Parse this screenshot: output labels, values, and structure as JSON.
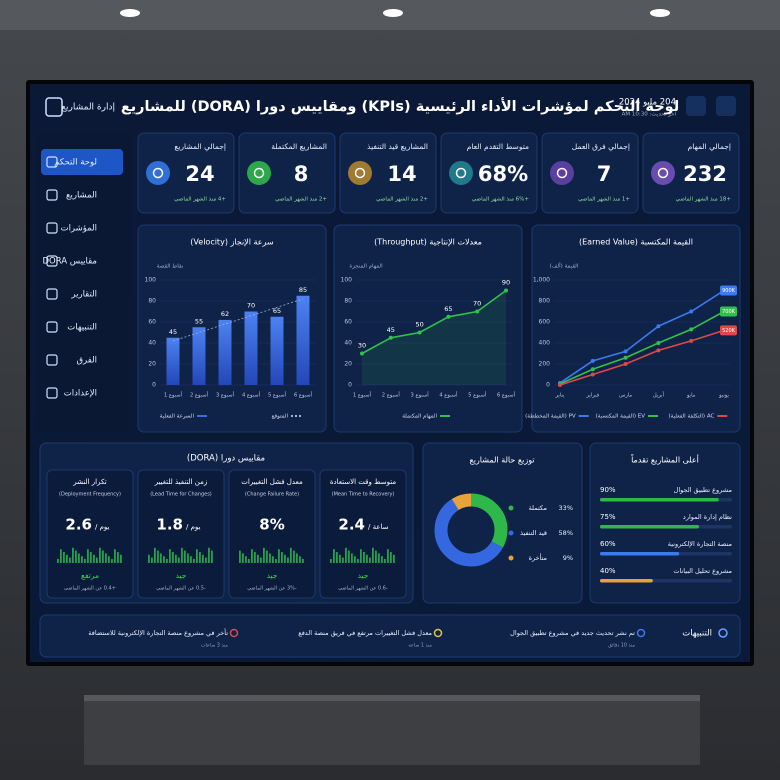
{
  "header": {
    "brand": "إدارة المشاريع",
    "title": "لوحة التحكم لمؤشرات الأداء الرئيسية (KPIs) ومقاييس دورا (DORA) للمشاريع",
    "date": "204 مايو 2024",
    "updated": "آخر تحديث: 10:30 AM"
  },
  "sidebar": [
    "لوحة التحكم",
    "المشاريع",
    "المؤشرات",
    "مقاييس DORA",
    "التقارير",
    "التنبيهات",
    "الفرق",
    "الإعدادات"
  ],
  "kpis": [
    {
      "title": "إجمالي المشاريع",
      "value": "24",
      "note": "+4 منذ الشهر الماضي",
      "color": "#2f6fd6"
    },
    {
      "title": "المشاريع المكتملة",
      "value": "8",
      "note": "+2 منذ الشهر الماضي",
      "color": "#2aa84a"
    },
    {
      "title": "المشاريع قيد التنفيذ",
      "value": "14",
      "note": "+2 منذ الشهر الماضي",
      "color": "#a07a30"
    },
    {
      "title": "متوسط التقدم العام",
      "value": "68%",
      "note": "+6% منذ الشهر الماضي",
      "color": "#1f7a8c"
    },
    {
      "title": "إجمالي فرق العمل",
      "value": "7",
      "note": "+1 منذ الشهر الماضي",
      "color": "#5b3fa0"
    },
    {
      "title": "إجمالي المهام",
      "value": "232",
      "note": "+18 منذ الشهر الماضي",
      "color": "#6a4bb0"
    }
  ],
  "velocity": {
    "type": "bar",
    "title": "سرعة الإنجاز (Velocity)",
    "y_label": "نقاط القصة",
    "categories": [
      "أسبوع 1",
      "أسبوع 2",
      "أسبوع 3",
      "أسبوع 4",
      "أسبوع 5",
      "أسبوع 6"
    ],
    "series": [
      {
        "name": "السرعة الفعلية",
        "color": "#3b6fe0",
        "values": [
          45,
          55,
          62,
          70,
          65,
          85
        ]
      },
      {
        "name": "المتوقع",
        "color": "#9fb3d9",
        "values": [
          42,
          50,
          58,
          66,
          74,
          82
        ]
      }
    ],
    "ylim": [
      0,
      100
    ],
    "yticks": [
      0,
      20,
      40,
      60,
      80,
      100
    ]
  },
  "throughput": {
    "type": "line",
    "title": "معدلات الإنتاجية (Throughput)",
    "y_label": "المهام المنجزة",
    "categories": [
      "أسبوع 1",
      "أسبوع 2",
      "أسبوع 3",
      "أسبوع 4",
      "أسبوع 5",
      "أسبوع 6"
    ],
    "series": [
      {
        "name": "المهام المكتملة",
        "color": "#2fc24a",
        "values": [
          30,
          45,
          50,
          65,
          70,
          90
        ]
      }
    ],
    "ylim": [
      0,
      100
    ],
    "yticks": [
      0,
      20,
      40,
      60,
      80,
      100
    ]
  },
  "earned_value": {
    "type": "line",
    "title": "القيمة المكتسبة (Earned Value)",
    "y_label": "القيمة (ألف)",
    "categories": [
      "يناير",
      "فبراير",
      "مارس",
      "أبريل",
      "مايو",
      "يونيو"
    ],
    "series": [
      {
        "name": "PV (القيمة المخططة)",
        "color": "#3b7bf0",
        "values": [
          20,
          230,
          320,
          560,
          700,
          900
        ],
        "end_label": "900K"
      },
      {
        "name": "EV (القيمة المكتسبة)",
        "color": "#2fc24a",
        "values": [
          10,
          150,
          260,
          400,
          530,
          700
        ],
        "end_label": "700K"
      },
      {
        "name": "AC (التكلفة الفعلية)",
        "color": "#e04848",
        "values": [
          0,
          100,
          200,
          330,
          420,
          520
        ],
        "end_label": "520K"
      }
    ],
    "ylim": [
      0,
      1000
    ],
    "yticks": [
      0,
      200,
      400,
      600,
      800,
      {
        "value": 1000,
        "label": "1,000"
      }
    ]
  },
  "dora": {
    "title": "مقاييس دورا (DORA)",
    "metrics": [
      {
        "title": "تكرار النشر",
        "subtitle": "(Deployment Frequency)",
        "value": "2.6",
        "unit": "يوم /",
        "rating": "مرتفع",
        "note": "+0.4 عن الشهر الماضي"
      },
      {
        "title": "زمن التنفيذ للتغيير",
        "subtitle": "(Lead Time for Changes)",
        "value": "1.8",
        "unit": "يوم /",
        "rating": "جيد",
        "note": "-0.5 عن الشهر الماضي"
      },
      {
        "title": "معدل فشل التغييرات",
        "subtitle": "(Change Failure Rate)",
        "value": "8%",
        "unit": "",
        "rating": "جيد",
        "note": "-3% عن الشهر الماضي"
      },
      {
        "title": "متوسط وقت الاستعادة",
        "subtitle": "(Mean Time to Recovery)",
        "value": "2.4",
        "unit": "ساعة /",
        "rating": "جيد",
        "note": "-0.6 عن الشهر الماضي"
      }
    ]
  },
  "status": {
    "type": "pie",
    "title": "توزيع حالة المشاريع",
    "items": [
      {
        "name": "مكتملة",
        "value": 33,
        "label": "33%",
        "color": "#2fb84a"
      },
      {
        "name": "قيد التنفيذ",
        "value": 58,
        "label": "58%",
        "color": "#3568e0"
      },
      {
        "name": "متأخرة",
        "value": 9,
        "label": "9%",
        "color": "#e8a23a"
      }
    ]
  },
  "top_projects": {
    "title": "أعلى المشاريع تقدماً",
    "items": [
      {
        "name": "مشروع تطبيق الجوال",
        "value": 90,
        "label": "90%",
        "color": "#2fb84a"
      },
      {
        "name": "نظام إدارة الموارد",
        "value": 75,
        "label": "75%",
        "color": "#2fb84a"
      },
      {
        "name": "منصة التجارة الإلكترونية",
        "value": 60,
        "label": "60%",
        "color": "#3b7bf0"
      },
      {
        "name": "مشروع تحليل البيانات",
        "value": 40,
        "label": "40%",
        "color": "#e8a23a"
      }
    ]
  },
  "alerts": {
    "title": "التنبيهات",
    "items": [
      {
        "text": "تم نشر تحديث جديد في مشروع تطبيق الجوال",
        "time": "منذ 10 دقائق",
        "color": "#3b7bf0"
      },
      {
        "text": "معدل فشل التغييرات مرتفع في فريق منصة الدفع",
        "time": "منذ 1 ساعة",
        "color": "#e8c23a"
      },
      {
        "text": "تأخر في مشروع منصة التجارة الإلكترونية للاستضافة",
        "time": "منذ 3 ساعات",
        "color": "#e04848"
      }
    ]
  }
}
